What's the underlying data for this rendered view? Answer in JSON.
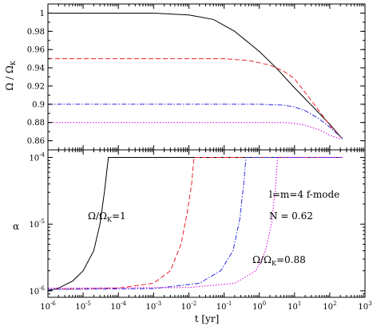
{
  "chart_data": [
    {
      "type": "line",
      "panel": "top",
      "ylabel": "Ω / Ω",
      "ylabel_sub": "K",
      "xscale": "log",
      "xlim": [
        1e-06,
        1000
      ],
      "ylim": [
        0.85,
        1.01
      ],
      "yticks": [
        0.86,
        0.88,
        0.9,
        0.92,
        0.94,
        0.96,
        0.98,
        1
      ],
      "ytick_labels": [
        "0.86",
        "0.88",
        "0.9",
        "0.92",
        "0.94",
        "0.96",
        "0.98",
        "1"
      ],
      "grid": false,
      "series": [
        {
          "color": "#000000",
          "dash": "solid",
          "x": [
            1e-06,
            0.001,
            0.01,
            0.05,
            0.2,
            1,
            3,
            10,
            30,
            100,
            230
          ],
          "y": [
            1.0,
            1.0,
            0.998,
            0.993,
            0.98,
            0.958,
            0.94,
            0.918,
            0.899,
            0.878,
            0.862
          ]
        },
        {
          "color": "#e8222a",
          "dash": "dashed",
          "x": [
            1e-06,
            0.01,
            0.1,
            0.5,
            2,
            5,
            10,
            30,
            100,
            230
          ],
          "y": [
            0.95,
            0.95,
            0.95,
            0.948,
            0.943,
            0.936,
            0.928,
            0.904,
            0.877,
            0.862
          ]
        },
        {
          "color": "#2a2ae0",
          "dash": "dashdot",
          "x": [
            1e-06,
            0.1,
            1,
            5,
            10,
            20,
            50,
            100,
            230
          ],
          "y": [
            0.9,
            0.9,
            0.9,
            0.899,
            0.897,
            0.893,
            0.884,
            0.875,
            0.862
          ]
        },
        {
          "color": "#d800d8",
          "dash": "dotted",
          "x": [
            1e-06,
            1,
            5,
            10,
            20,
            50,
            100,
            200
          ],
          "y": [
            0.88,
            0.88,
            0.88,
            0.879,
            0.877,
            0.872,
            0.866,
            0.862
          ]
        }
      ]
    },
    {
      "type": "line",
      "panel": "bottom",
      "ylabel": "α",
      "xlabel": "t [yr]",
      "xscale": "log",
      "yscale": "log",
      "xlim": [
        1e-06,
        1000
      ],
      "ylim": [
        8e-07,
        0.00013
      ],
      "xtick_mantissa": [
        "10",
        "10",
        "10",
        "10",
        "10",
        "10",
        "10",
        "10",
        "10",
        "10"
      ],
      "xtick_exponents": [
        "-6",
        "-5",
        "-4",
        "-3",
        "-2",
        "-1",
        "0",
        "1",
        "2",
        "3"
      ],
      "ytick_mantissa": [
        "10",
        "10",
        "10"
      ],
      "ytick_exponents": [
        "-6",
        "-5",
        "-4"
      ],
      "grid": false,
      "series": [
        {
          "color": "#000000",
          "dash": "solid",
          "x": [
            1e-06,
            2e-06,
            5e-06,
            1e-05,
            2e-05,
            3e-05,
            4e-05,
            5.2e-05,
            0.001,
            1,
            230
          ],
          "y": [
            1e-06,
            1.1e-06,
            1.4e-06,
            2e-06,
            4e-06,
            1e-05,
            3e-05,
            0.0001,
            0.0001,
            0.0001,
            0.0001
          ]
        },
        {
          "color": "#e8222a",
          "dash": "dashed",
          "x": [
            1e-06,
            0.0001,
            0.001,
            0.003,
            0.006,
            0.009,
            0.012,
            0.014,
            1,
            230
          ],
          "y": [
            1.05e-06,
            1.1e-06,
            1.3e-06,
            2e-06,
            5e-06,
            1.5e-05,
            4e-05,
            0.0001,
            0.0001,
            0.0001
          ]
        },
        {
          "color": "#2a2ae0",
          "dash": "dashdot",
          "x": [
            1e-06,
            0.001,
            0.02,
            0.08,
            0.18,
            0.28,
            0.36,
            0.42,
            10,
            230
          ],
          "y": [
            1.05e-06,
            1.08e-06,
            1.3e-06,
            2e-06,
            4e-06,
            1.2e-05,
            4e-05,
            0.0001,
            0.0001,
            0.0001
          ]
        },
        {
          "color": "#d800d8",
          "dash": "dotted",
          "x": [
            1e-06,
            0.01,
            0.2,
            0.8,
            1.5,
            2.2,
            2.8,
            3.3,
            10,
            230
          ],
          "y": [
            1.1e-06,
            1.12e-06,
            1.3e-06,
            2e-06,
            4e-06,
            1e-05,
            3e-05,
            0.0001,
            0.0001,
            0.0001
          ]
        }
      ],
      "annotations": {
        "omega_top": {
          "prefix": "Ω/Ω",
          "sub": "K",
          "suffix": "=1"
        },
        "omega_bottom": {
          "prefix": "Ω/Ω",
          "sub": "K",
          "suffix": "=0.88"
        },
        "mode": "l=m=4 f-mode",
        "n_value": "N = 0.62"
      }
    }
  ]
}
